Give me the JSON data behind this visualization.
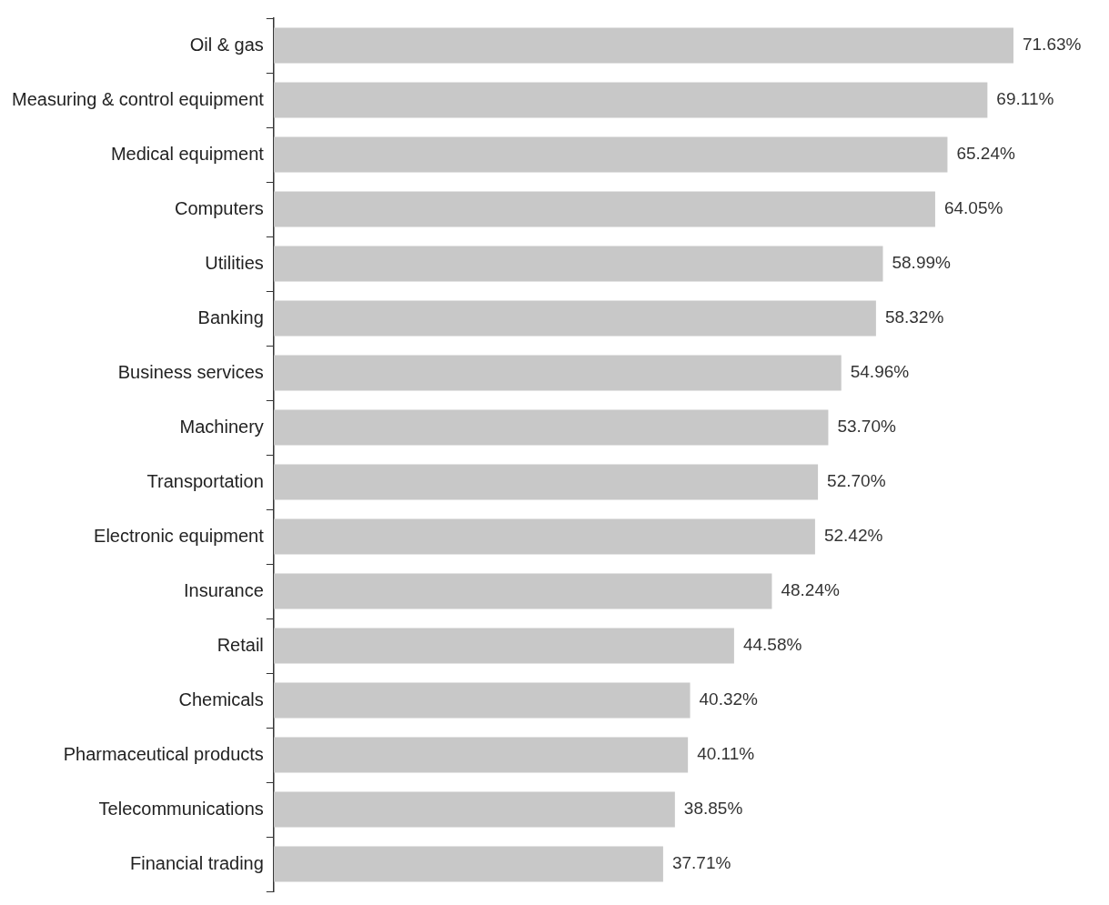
{
  "chart_data": {
    "type": "bar",
    "orientation": "horizontal",
    "tick_labels": "y",
    "categories": [
      "Oil & gas",
      "Measuring & control equipment",
      "Medical equipment",
      "Computers",
      "Utilities",
      "Banking",
      "Business services",
      "Machinery",
      "Transportation",
      "Electronic equipment",
      "Insurance",
      "Retail",
      "Chemicals",
      "Pharmaceutical products",
      "Telecommunications",
      "Financial trading"
    ],
    "values": [
      71.63,
      69.11,
      65.24,
      64.05,
      58.99,
      58.32,
      54.96,
      53.7,
      52.7,
      52.42,
      48.24,
      44.58,
      40.32,
      40.11,
      38.85,
      37.71
    ],
    "value_labels": [
      "71.63%",
      "69.11%",
      "65.24%",
      "64.05%",
      "58.99%",
      "58.32%",
      "54.96%",
      "53.70%",
      "52.70%",
      "52.42%",
      "48.24%",
      "44.58%",
      "40.32%",
      "40.11%",
      "38.85%",
      "37.71%"
    ],
    "color": "#c8c8c8",
    "legend": false
  }
}
